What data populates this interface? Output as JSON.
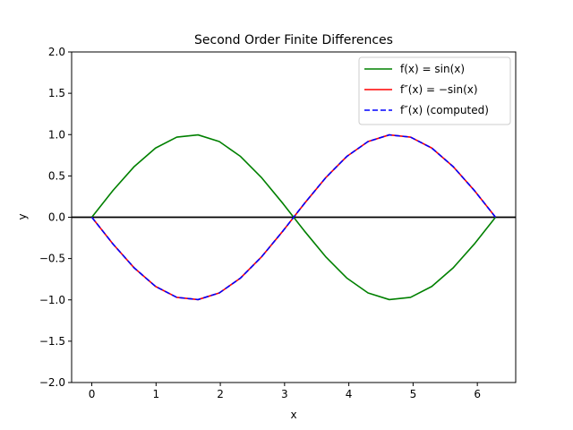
{
  "chart_data": {
    "type": "line",
    "title": "Second Order Finite Differences",
    "xlabel": "x",
    "ylabel": "y",
    "xlim": [
      -0.314,
      6.597
    ],
    "ylim": [
      -2.0,
      2.0
    ],
    "x_ticks": [
      0,
      1,
      2,
      3,
      4,
      5,
      6
    ],
    "y_ticks": [
      -2.0,
      -1.5,
      -1.0,
      -0.5,
      0.0,
      0.5,
      1.0,
      1.5,
      2.0
    ],
    "x_tick_labels": [
      "0",
      "1",
      "2",
      "3",
      "4",
      "5",
      "6"
    ],
    "y_tick_labels": [
      "−2.0",
      "−1.5",
      "−1.0",
      "−0.5",
      "0.0",
      "0.5",
      "1.0",
      "1.5",
      "2.0"
    ],
    "grid": false,
    "legend_position": "top-right",
    "hline": {
      "y": 0,
      "color": "#000000"
    },
    "series": [
      {
        "name": "f(x) = sin(x)",
        "color": "#008000",
        "style": "solid",
        "x": [
          0,
          0.3307,
          0.6614,
          0.9921,
          1.3228,
          1.6535,
          1.9842,
          2.3149,
          2.6456,
          2.9762,
          3.3069,
          3.6376,
          3.9683,
          4.299,
          4.6297,
          4.9604,
          5.2911,
          5.6218,
          5.9525,
          6.2832
        ],
        "y": [
          0,
          0.3247,
          0.6142,
          0.8372,
          0.9694,
          0.9966,
          0.9158,
          0.7357,
          0.4759,
          0.1646,
          -0.1646,
          -0.4759,
          -0.7357,
          -0.9158,
          -0.9966,
          -0.9694,
          -0.8372,
          -0.6142,
          -0.3247,
          0
        ]
      },
      {
        "name": "f″(x) = −sin(x)",
        "color": "#ff0000",
        "style": "solid",
        "x": [
          0,
          0.3307,
          0.6614,
          0.9921,
          1.3228,
          1.6535,
          1.9842,
          2.3149,
          2.6456,
          2.9762,
          3.3069,
          3.6376,
          3.9683,
          4.299,
          4.6297,
          4.9604,
          5.2911,
          5.6218,
          5.9525,
          6.2832
        ],
        "y": [
          0,
          -0.3247,
          -0.6142,
          -0.8372,
          -0.9694,
          -0.9966,
          -0.9158,
          -0.7357,
          -0.4759,
          -0.1646,
          0.1646,
          0.4759,
          0.7357,
          0.9158,
          0.9966,
          0.9694,
          0.8372,
          0.6142,
          0.3247,
          0
        ]
      },
      {
        "name": "f″(x) (computed)",
        "color": "#0000ff",
        "style": "dashed",
        "x": [
          0,
          0.3307,
          0.6614,
          0.9921,
          1.3228,
          1.6535,
          1.9842,
          2.3149,
          2.6456,
          2.9762,
          3.3069,
          3.6376,
          3.9683,
          4.299,
          4.6297,
          4.9604,
          5.2911,
          5.6218,
          5.9525,
          6.2832
        ],
        "y": [
          0,
          -0.3247,
          -0.6142,
          -0.8372,
          -0.9694,
          -0.9966,
          -0.9158,
          -0.7357,
          -0.4759,
          -0.1646,
          0.1646,
          0.4759,
          0.7357,
          0.9158,
          0.9966,
          0.9694,
          0.8372,
          0.6142,
          0.3247,
          0
        ]
      }
    ]
  }
}
